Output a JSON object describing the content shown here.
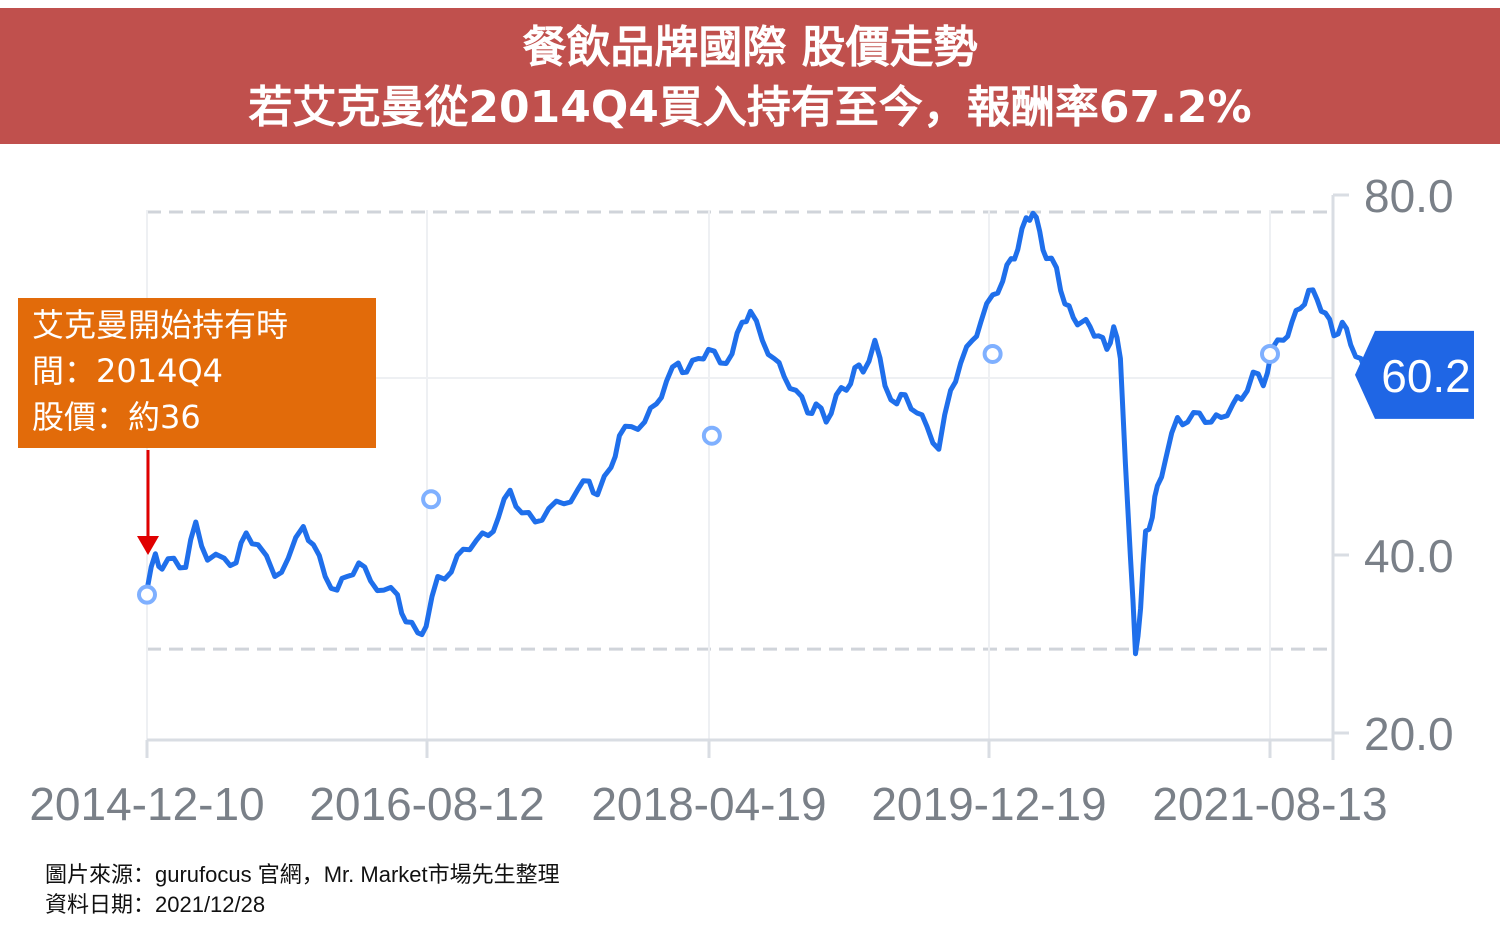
{
  "header": {
    "line1": "餐飲品牌國際 股價走勢",
    "line2": "若艾克曼從2014Q4買入持有至今，報酬率67.2%"
  },
  "callout": {
    "line1": "艾克曼開始持有時",
    "line2": "間：2014Q4",
    "line3": "股價：約36"
  },
  "footer": {
    "source": "圖片來源：gurufocus 官網，Mr. Market市場先生整理",
    "date": "資料日期：2021/12/28"
  },
  "colors": {
    "banner": "#c0504d",
    "callout": "#e26b0a",
    "line": "#1f6feb",
    "arrow": "#e00000",
    "axis_text": "#7a8088",
    "grid": "#d9dde3"
  },
  "chart_data": {
    "type": "line",
    "x_ticks": [
      "2014-12-10",
      "2016-08-12",
      "2018-04-19",
      "2019-12-19",
      "2021-08-13"
    ],
    "y_ticks": [
      "20.0",
      "40.0",
      "80.0"
    ],
    "ylim": [
      15,
      82
    ],
    "dashed_gridlines": [
      30,
      80
    ],
    "last_value_label": "60.2",
    "series": [
      {
        "values": [
          [
            2014.94,
            36.5
          ],
          [
            2014.99,
            40.5
          ],
          [
            2015.03,
            38.8
          ],
          [
            2015.1,
            40.0
          ],
          [
            2015.17,
            39.0
          ],
          [
            2015.23,
            44.0
          ],
          [
            2015.3,
            39.8
          ],
          [
            2015.4,
            40.0
          ],
          [
            2015.47,
            39.5
          ],
          [
            2015.53,
            42.8
          ],
          [
            2015.6,
            41.5
          ],
          [
            2015.7,
            38.0
          ],
          [
            2015.78,
            40.0
          ],
          [
            2015.87,
            43.5
          ],
          [
            2015.93,
            41.5
          ],
          [
            2016.0,
            38.0
          ],
          [
            2016.07,
            36.5
          ],
          [
            2016.13,
            38.0
          ],
          [
            2016.2,
            39.5
          ],
          [
            2016.27,
            37.5
          ],
          [
            2016.35,
            36.5
          ],
          [
            2016.43,
            36.0
          ],
          [
            2016.48,
            33.0
          ],
          [
            2016.55,
            31.8
          ],
          [
            2016.6,
            32.5
          ],
          [
            2016.67,
            38.0
          ],
          [
            2016.75,
            38.5
          ],
          [
            2016.82,
            41.0
          ],
          [
            2016.9,
            42.0
          ],
          [
            2016.97,
            42.5
          ],
          [
            2017.03,
            44.5
          ],
          [
            2017.1,
            47.5
          ],
          [
            2017.17,
            45.0
          ],
          [
            2017.25,
            44.0
          ],
          [
            2017.33,
            45.5
          ],
          [
            2017.42,
            46.0
          ],
          [
            2017.5,
            47.5
          ],
          [
            2017.57,
            48.5
          ],
          [
            2017.62,
            47.0
          ],
          [
            2017.7,
            50.0
          ],
          [
            2017.75,
            53.5
          ],
          [
            2017.82,
            54.5
          ],
          [
            2017.9,
            55.0
          ],
          [
            2017.97,
            57.0
          ],
          [
            2018.03,
            59.5
          ],
          [
            2018.1,
            61.5
          ],
          [
            2018.15,
            60.5
          ],
          [
            2018.22,
            62.0
          ],
          [
            2018.28,
            63.0
          ],
          [
            2018.35,
            61.5
          ],
          [
            2018.42,
            62.5
          ],
          [
            2018.48,
            66.0
          ],
          [
            2018.53,
            67.2
          ],
          [
            2018.6,
            64.0
          ],
          [
            2018.67,
            62.0
          ],
          [
            2018.73,
            60.0
          ],
          [
            2018.8,
            58.5
          ],
          [
            2018.87,
            56.0
          ],
          [
            2018.92,
            57.0
          ],
          [
            2018.98,
            55.0
          ],
          [
            2019.04,
            58.0
          ],
          [
            2019.1,
            58.5
          ],
          [
            2019.15,
            61.0
          ],
          [
            2019.2,
            60.5
          ],
          [
            2019.27,
            64.0
          ],
          [
            2019.33,
            59.0
          ],
          [
            2019.4,
            57.0
          ],
          [
            2019.45,
            58.0
          ],
          [
            2019.52,
            56.0
          ],
          [
            2019.58,
            54.5
          ],
          [
            2019.65,
            52.0
          ],
          [
            2019.72,
            58.5
          ],
          [
            2019.78,
            61.5
          ],
          [
            2019.85,
            64.0
          ],
          [
            2019.9,
            66.0
          ],
          [
            2019.97,
            69.0
          ],
          [
            2020.03,
            70.5
          ],
          [
            2020.08,
            73.0
          ],
          [
            2020.12,
            74.0
          ],
          [
            2020.17,
            77.5
          ],
          [
            2020.21,
            78.0
          ],
          [
            2020.25,
            76.0
          ],
          [
            2020.29,
            73.0
          ],
          [
            2020.35,
            72.0
          ],
          [
            2020.4,
            68.0
          ],
          [
            2020.45,
            66.5
          ],
          [
            2020.5,
            66.0
          ],
          [
            2020.55,
            65.5
          ],
          [
            2020.6,
            64.5
          ],
          [
            2020.65,
            63.0
          ],
          [
            2020.69,
            65.5
          ],
          [
            2020.73,
            62.0
          ],
          [
            2020.79,
            40.0
          ],
          [
            2020.82,
            29.5
          ],
          [
            2020.85,
            34.5
          ],
          [
            2020.88,
            43.0
          ],
          [
            2020.92,
            44.5
          ],
          [
            2020.95,
            48.0
          ],
          [
            2021.0,
            51.0
          ],
          [
            2021.07,
            55.5
          ],
          [
            2021.13,
            55.0
          ],
          [
            2021.2,
            56.0
          ],
          [
            2021.27,
            55.0
          ],
          [
            2021.33,
            55.5
          ],
          [
            2021.4,
            57.0
          ],
          [
            2021.45,
            57.5
          ],
          [
            2021.52,
            60.5
          ],
          [
            2021.58,
            59.0
          ],
          [
            2021.63,
            63.0
          ],
          [
            2021.7,
            64.0
          ],
          [
            2021.75,
            66.0
          ],
          [
            2021.8,
            67.5
          ],
          [
            2021.85,
            69.5
          ],
          [
            2021.9,
            68.5
          ],
          [
            2021.95,
            67.0
          ],
          [
            2022.0,
            64.5
          ],
          [
            2022.05,
            66.0
          ],
          [
            2022.1,
            63.5
          ],
          [
            2022.16,
            62.0
          ],
          [
            2022.21,
            58.5
          ],
          [
            2022.27,
            61.0
          ],
          [
            2022.3,
            57.0
          ],
          [
            2022.35,
            60.2
          ]
        ]
      }
    ],
    "markers": [
      [
        2014.94,
        36.0
      ],
      [
        2016.63,
        46.5
      ],
      [
        2018.3,
        53.5
      ],
      [
        2019.97,
        62.5
      ],
      [
        2021.62,
        62.5
      ]
    ]
  }
}
